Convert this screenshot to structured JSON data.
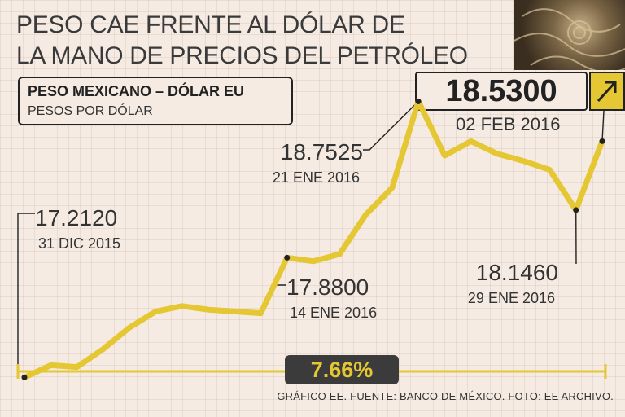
{
  "title_lines": [
    "PESO CAE FRENTE AL DÓLAR DE",
    "LA MANO DE PRECIOS DEL PETRÓLEO"
  ],
  "legend": {
    "series_name": "PESO MEXICANO – DÓLAR EU",
    "units": "PESOS POR DÓLAR"
  },
  "current": {
    "value": "18.5300",
    "date": "02 FEB 2016",
    "trend_icon": "arrow-up-right-icon"
  },
  "change_percent": "7.66%",
  "source": "GRÁFICO EE. FUENTE: BANCO DE MÉXICO. FOTO: EE ARCHIVO.",
  "colors": {
    "line": "#e5c733",
    "background": "#f5ebe3",
    "badge": "#3b3b3b"
  },
  "chart_data": {
    "type": "line",
    "title": "PESO CAE FRENTE AL DÓLAR DE LA MANO DE PRECIOS DEL PETRÓLEO",
    "ylabel": "PESOS POR DÓLAR",
    "series": [
      {
        "name": "PESO MEXICANO – DÓLAR EU",
        "values": [
          17.212,
          17.28,
          17.27,
          17.37,
          17.49,
          17.58,
          17.61,
          17.59,
          17.58,
          17.57,
          17.88,
          17.86,
          17.9,
          18.12,
          18.27,
          18.7525,
          18.45,
          18.53,
          18.46,
          18.42,
          18.37,
          18.146,
          18.53
        ]
      }
    ],
    "ylim": [
      17.0,
      19.0
    ],
    "annotations": [
      {
        "index": 0,
        "value": "17.2120",
        "date": "31 DIC 2015"
      },
      {
        "index": 10,
        "value": "17.8800",
        "date": "14 ENE 2016"
      },
      {
        "index": 15,
        "value": "18.7525",
        "date": "21 ENE 2016"
      },
      {
        "index": 21,
        "value": "18.1460",
        "date": "29 ENE 2016"
      },
      {
        "index": 22,
        "value": "18.5300",
        "date": "02 FEB 2016"
      }
    ],
    "grid": true
  }
}
